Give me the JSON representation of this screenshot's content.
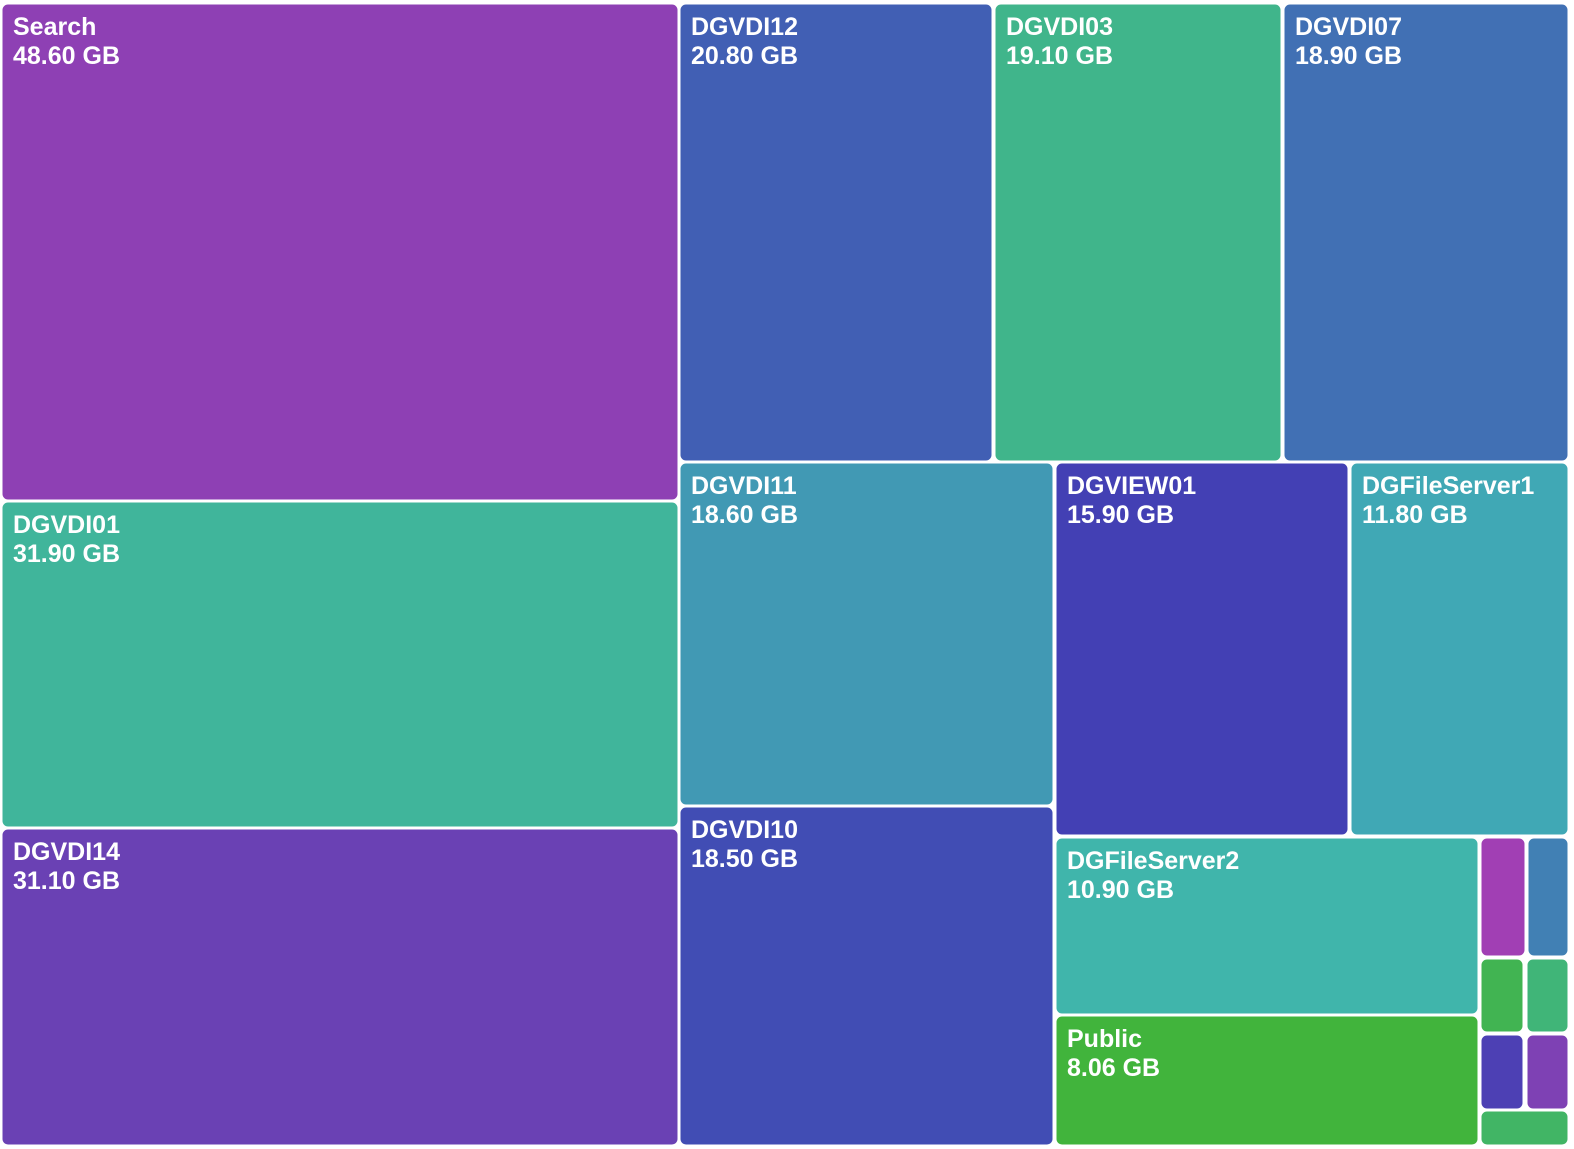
{
  "chart_data": {
    "type": "treemap",
    "unit": "GB",
    "items": [
      {
        "name": "Search",
        "value": 48.6,
        "value_label": "48.60 GB",
        "color": "#8e40b4"
      },
      {
        "name": "DGVDI01",
        "value": 31.9,
        "value_label": "31.90 GB",
        "color": "#40b59b"
      },
      {
        "name": "DGVDI14",
        "value": 31.1,
        "value_label": "31.10 GB",
        "color": "#6a41b4"
      },
      {
        "name": "DGVDI12",
        "value": 20.8,
        "value_label": "20.80 GB",
        "color": "#415fb4"
      },
      {
        "name": "DGVDI03",
        "value": 19.1,
        "value_label": "19.10 GB",
        "color": "#40b58b"
      },
      {
        "name": "DGVDI07",
        "value": 18.9,
        "value_label": "18.90 GB",
        "color": "#4170b4"
      },
      {
        "name": "DGVDI11",
        "value": 18.6,
        "value_label": "18.60 GB",
        "color": "#4199b4"
      },
      {
        "name": "DGVDI10",
        "value": 18.5,
        "value_label": "18.50 GB",
        "color": "#414db4"
      },
      {
        "name": "DGVIEW01",
        "value": 15.9,
        "value_label": "15.90 GB",
        "color": "#4340b4"
      },
      {
        "name": "DGFileServer1",
        "value": 11.8,
        "value_label": "11.80 GB",
        "color": "#40a8b5"
      },
      {
        "name": "DGFileServer2",
        "value": 10.9,
        "value_label": "10.90 GB",
        "color": "#40b5ab"
      },
      {
        "name": "Public",
        "value": 8.06,
        "value_label": "8.06 GB",
        "color": "#41b43c"
      },
      {
        "name": "",
        "value": 1.2,
        "value_label": "",
        "color": "#a13fb4"
      },
      {
        "name": "",
        "value": 1.2,
        "value_label": "",
        "color": "#4180b4"
      },
      {
        "name": "",
        "value": 1.1,
        "value_label": "",
        "color": "#41b452"
      },
      {
        "name": "",
        "value": 1.1,
        "value_label": "",
        "color": "#40b578"
      },
      {
        "name": "",
        "value": 1.0,
        "value_label": "",
        "color": "#4d40b4"
      },
      {
        "name": "",
        "value": 1.0,
        "value_label": "",
        "color": "#7e41b4"
      },
      {
        "name": "",
        "value": 0.6,
        "value_label": "",
        "color": "#41b565"
      }
    ]
  }
}
